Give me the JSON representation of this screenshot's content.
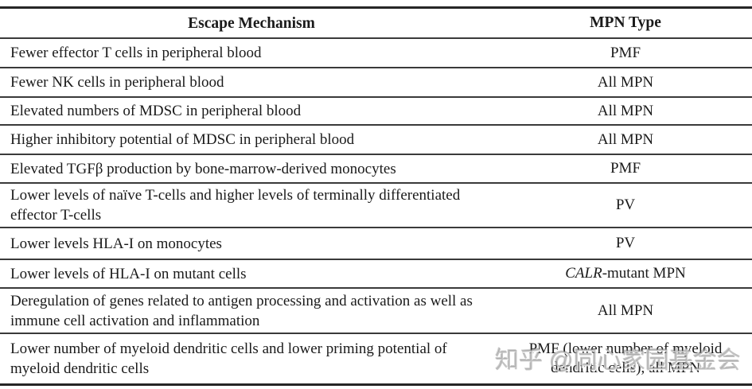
{
  "table": {
    "headers": {
      "mechanism": "Escape Mechanism",
      "type": "MPN Type"
    },
    "rows": [
      {
        "mechanism": "Fewer effector T cells in peripheral blood",
        "type": "PMF"
      },
      {
        "mechanism": "Fewer NK cells in peripheral blood",
        "type": "All MPN"
      },
      {
        "mechanism": "Elevated numbers of MDSC in peripheral blood",
        "type": "All MPN"
      },
      {
        "mechanism": "Higher inhibitory potential of MDSC in peripheral blood",
        "type": "All MPN"
      },
      {
        "mechanism": "Elevated TGFβ production by bone-marrow-derived monocytes",
        "type": "PMF"
      },
      {
        "mechanism": "Lower levels of naïve T-cells and higher levels of terminally differentiated effector T-cells",
        "type": "PV"
      },
      {
        "mechanism": "Lower levels HLA-I on monocytes",
        "type": "PV"
      },
      {
        "mechanism": "Lower levels of HLA-I on mutant cells",
        "type_italic": "CALR",
        "type_rest": "-mutant MPN"
      },
      {
        "mechanism": "Deregulation of genes related to antigen processing and activation as well as immune cell activation and inflammation",
        "type": "All MPN"
      },
      {
        "mechanism": "Lower number of myeloid dendritic cells and lower priming potential of myeloid dendritic cells",
        "type": "PMF (lower number of myeloid dendritic cells), all MPN"
      }
    ]
  },
  "watermark": {
    "text": "知乎 @同心家园基金会"
  },
  "colors": {
    "border_heavy": "#262626",
    "border_row": "#3a3a3a",
    "text": "#1a1a1a",
    "watermark": "#969696",
    "background": "#ffffff"
  }
}
